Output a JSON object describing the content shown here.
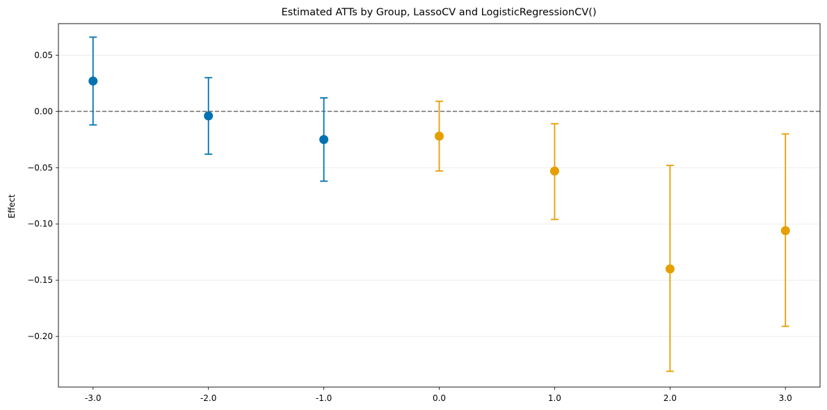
{
  "chart_data": {
    "type": "scatter",
    "title": "Estimated ATTs by Group, LassoCV and LogisticRegressionCV()",
    "xlabel": "",
    "ylabel": "Effect",
    "x_tick_labels": [
      "-3.0",
      "-2.0",
      "-1.0",
      "0.0",
      "1.0",
      "2.0",
      "3.0"
    ],
    "y_tick_labels": [
      "0.05",
      "0.00",
      "−0.05",
      "−0.10",
      "−0.15",
      "−0.20"
    ],
    "y_ticks": [
      0.05,
      0.0,
      -0.05,
      -0.1,
      -0.15,
      -0.2
    ],
    "xlim": [
      -3.3,
      3.3
    ],
    "ylim": [
      -0.245,
      0.078
    ],
    "grid": "y",
    "reference_line": 0.0,
    "colors": {
      "pre": "#0072B2",
      "post": "#E69F00",
      "reference": "#777777"
    },
    "points": [
      {
        "x": -3.0,
        "estimate": 0.027,
        "lower": -0.012,
        "upper": 0.066,
        "group": "pre"
      },
      {
        "x": -2.0,
        "estimate": -0.004,
        "lower": -0.038,
        "upper": 0.03,
        "group": "pre"
      },
      {
        "x": -1.0,
        "estimate": -0.025,
        "lower": -0.062,
        "upper": 0.012,
        "group": "pre"
      },
      {
        "x": 0.0,
        "estimate": -0.022,
        "lower": -0.053,
        "upper": 0.009,
        "group": "post"
      },
      {
        "x": 1.0,
        "estimate": -0.053,
        "lower": -0.096,
        "upper": -0.011,
        "group": "post"
      },
      {
        "x": 2.0,
        "estimate": -0.14,
        "lower": -0.231,
        "upper": -0.048,
        "group": "post"
      },
      {
        "x": 3.0,
        "estimate": -0.106,
        "lower": -0.191,
        "upper": -0.02,
        "group": "post"
      }
    ]
  }
}
